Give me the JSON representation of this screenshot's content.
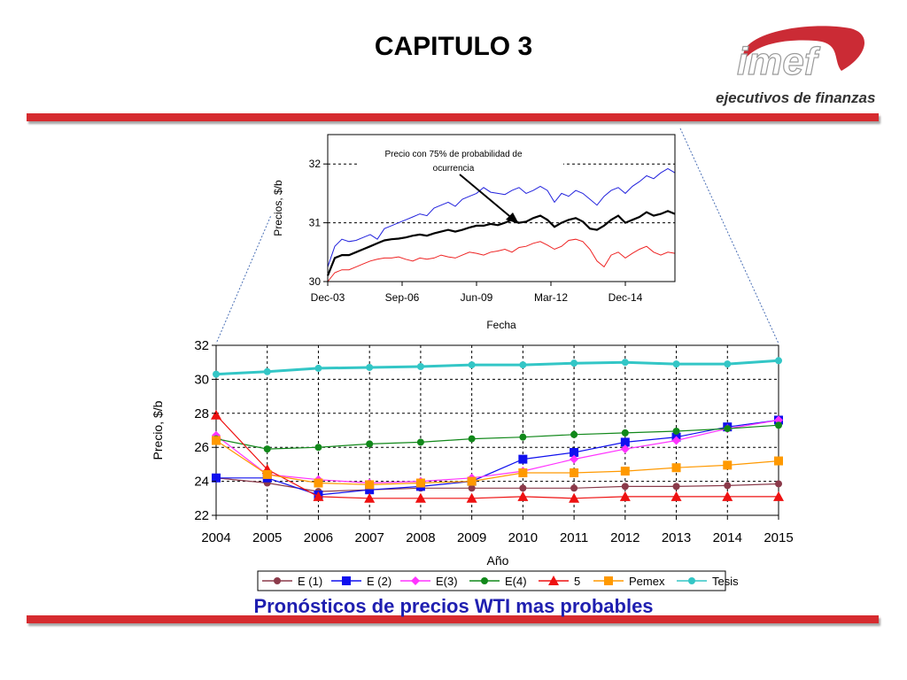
{
  "slide": {
    "title": "CAPITULO 3",
    "caption": "Pronósticos de precios WTI mas probables",
    "brand_color": "#d62b2f",
    "caption_color": "#1f1fb0"
  },
  "logo": {
    "wordmark": "imef",
    "tagline": "ejecutivos de finanzas",
    "color": "#c8202a",
    "tagline_color": "#333333"
  },
  "chart_data": [
    {
      "type": "line",
      "title": "",
      "xlabel": "Fecha",
      "ylabel": "Precios, $/b",
      "x_ticks": [
        "Dec-03",
        "Sep-06",
        "Jun-09",
        "Mar-12",
        "Dec-14"
      ],
      "ylim": [
        30,
        32.5
      ],
      "y_ticks": [
        30,
        31,
        32
      ],
      "grid": "horizontal dashed",
      "annotation": {
        "line1": "Precio con 75%  de probabilidad de",
        "line2": "ocurrencia"
      },
      "series": [
        {
          "color": "#2222dd",
          "values": [
            30.25,
            30.6,
            30.72,
            30.68,
            30.7,
            30.75,
            30.8,
            30.72,
            30.9,
            30.95,
            31.0,
            31.05,
            31.1,
            31.15,
            31.12,
            31.25,
            31.3,
            31.35,
            31.28,
            31.4,
            31.45,
            31.5,
            31.6,
            31.52,
            31.5,
            31.48,
            31.55,
            31.6,
            31.5,
            31.55,
            31.62,
            31.55,
            31.35,
            31.5,
            31.45,
            31.55,
            31.5,
            31.4,
            31.3,
            31.45,
            31.55,
            31.6,
            31.5,
            31.62,
            31.7,
            31.8,
            31.75,
            31.85,
            31.92,
            31.85
          ]
        },
        {
          "color": "#000000",
          "values": [
            30.1,
            30.4,
            30.45,
            30.45,
            30.5,
            30.55,
            30.6,
            30.65,
            30.7,
            30.72,
            30.73,
            30.75,
            30.78,
            30.8,
            30.78,
            30.82,
            30.85,
            30.88,
            30.85,
            30.88,
            30.92,
            30.95,
            30.95,
            30.98,
            30.96,
            31.0,
            31.05,
            31.0,
            31.02,
            31.08,
            31.12,
            31.05,
            30.93,
            31.0,
            31.05,
            31.08,
            31.02,
            30.9,
            30.88,
            30.95,
            31.05,
            31.12,
            31.0,
            31.05,
            31.1,
            31.18,
            31.12,
            31.15,
            31.2,
            31.15
          ]
        },
        {
          "color": "#ee2222",
          "values": [
            30.0,
            30.15,
            30.2,
            30.2,
            30.25,
            30.3,
            30.35,
            30.38,
            30.4,
            30.4,
            30.42,
            30.38,
            30.35,
            30.4,
            30.38,
            30.4,
            30.45,
            30.42,
            30.4,
            30.45,
            30.5,
            30.48,
            30.45,
            30.5,
            30.52,
            30.55,
            30.5,
            30.58,
            30.6,
            30.65,
            30.68,
            30.62,
            30.55,
            30.6,
            30.7,
            30.72,
            30.68,
            30.55,
            30.35,
            30.25,
            30.45,
            30.5,
            30.4,
            30.48,
            30.55,
            30.6,
            30.5,
            30.45,
            30.5,
            30.48
          ]
        }
      ]
    },
    {
      "type": "line",
      "title": "",
      "xlabel": "Año",
      "ylabel": "Precio, $/b",
      "categories": [
        "2004",
        "2005",
        "2006",
        "2007",
        "2008",
        "2009",
        "2010",
        "2011",
        "2012",
        "2013",
        "2014",
        "2015"
      ],
      "ylim": [
        22,
        32
      ],
      "y_ticks": [
        22,
        24,
        26,
        28,
        30,
        32
      ],
      "grid": "both dashed",
      "legend": "bottom",
      "series": [
        {
          "name": "E (1)",
          "color": "#8b3a4a",
          "marker": "circle",
          "values": [
            24.2,
            23.9,
            23.4,
            23.5,
            23.6,
            23.6,
            23.6,
            23.6,
            23.7,
            23.7,
            23.75,
            23.85
          ]
        },
        {
          "name": "E (2)",
          "color": "#1010ee",
          "marker": "square",
          "values": [
            24.2,
            24.2,
            23.2,
            23.5,
            23.7,
            24.0,
            25.3,
            25.7,
            26.3,
            26.6,
            27.2,
            27.6
          ]
        },
        {
          "name": "E(3)",
          "color": "#ff33ff",
          "marker": "diamond",
          "values": [
            26.7,
            24.4,
            24.1,
            23.9,
            24.0,
            24.2,
            24.6,
            25.3,
            25.9,
            26.4,
            27.1,
            27.6
          ]
        },
        {
          "name": "E(4)",
          "color": "#11881a",
          "marker": "circle",
          "values": [
            26.5,
            25.9,
            26.0,
            26.2,
            26.3,
            26.5,
            26.6,
            26.75,
            26.85,
            26.95,
            27.1,
            27.3
          ]
        },
        {
          "name": "5",
          "color": "#ee1111",
          "marker": "triangle",
          "values": [
            27.9,
            24.7,
            23.1,
            23.0,
            23.0,
            23.0,
            23.1,
            23.0,
            23.1,
            23.1,
            23.1,
            23.1
          ]
        },
        {
          "name": "Pemex",
          "color": "#ff9900",
          "marker": "square",
          "values": [
            26.4,
            24.4,
            23.9,
            23.8,
            23.9,
            24.0,
            24.5,
            24.5,
            24.6,
            24.8,
            24.95,
            25.2
          ]
        },
        {
          "name": "Tesis",
          "color": "#33c6c6",
          "marker": "circle",
          "values": [
            30.3,
            30.45,
            30.65,
            30.7,
            30.75,
            30.85,
            30.85,
            30.95,
            31.0,
            30.9,
            30.9,
            31.1
          ]
        }
      ]
    }
  ]
}
